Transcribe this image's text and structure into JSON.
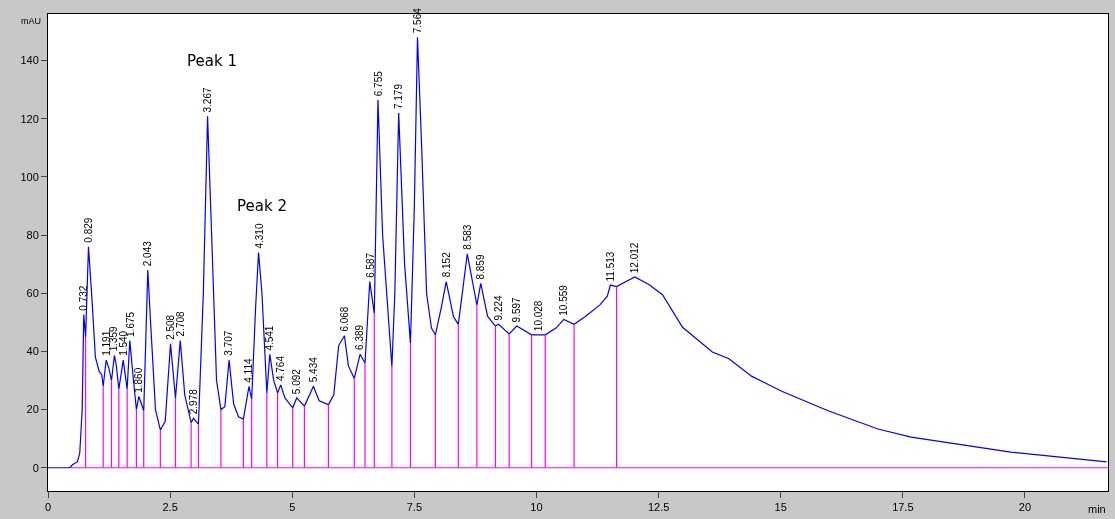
{
  "chart_data": {
    "type": "line",
    "xlabel": "min",
    "ylabel": "mAU",
    "xlim": [
      0,
      21.7
    ],
    "ylim": [
      -8,
      156
    ],
    "xticks": [
      0,
      2.5,
      5,
      7.5,
      10,
      12.5,
      15,
      17.5,
      20
    ],
    "yticks": [
      0,
      20,
      40,
      60,
      80,
      100,
      120,
      140
    ],
    "marker": "none",
    "line_style": "solid",
    "series": [
      {
        "color": "#0000ff",
        "x": [
          0,
          0.45,
          0.5,
          0.6,
          0.65,
          0.7,
          0.732,
          0.77,
          0.829,
          0.9,
          0.97,
          1.05,
          1.1,
          1.13,
          1.191,
          1.25,
          1.3,
          1.359,
          1.4,
          1.45,
          1.54,
          1.62,
          1.675,
          1.75,
          1.81,
          1.86,
          1.96,
          2.043,
          2.1,
          2.2,
          2.3,
          2.4,
          2.508,
          2.61,
          2.708,
          2.8,
          2.93,
          2.978,
          3.08,
          3.18,
          3.267,
          3.35,
          3.45,
          3.54,
          3.62,
          3.707,
          3.8,
          3.9,
          4.0,
          4.114,
          4.17,
          4.25,
          4.31,
          4.38,
          4.48,
          4.541,
          4.62,
          4.7,
          4.764,
          4.85,
          5.01,
          5.092,
          5.25,
          5.434,
          5.55,
          5.74,
          5.85,
          5.95,
          6.068,
          6.15,
          6.27,
          6.389,
          6.49,
          6.587,
          6.68,
          6.755,
          6.85,
          7.04,
          7.1,
          7.179,
          7.3,
          7.42,
          7.5,
          7.564,
          7.65,
          7.75,
          7.85,
          7.93,
          8.05,
          8.152,
          8.3,
          8.4,
          8.583,
          8.78,
          8.859,
          9.0,
          9.16,
          9.224,
          9.44,
          9.597,
          9.9,
          10.028,
          10.18,
          10.4,
          10.559,
          10.77,
          11.0,
          11.3,
          11.45,
          11.513,
          11.64,
          12.012,
          12.3,
          12.58,
          12.99,
          13.6,
          13.94,
          14.41,
          15.02,
          15.97,
          16.99,
          17.67,
          19.71,
          21.67
        ],
        "values": [
          0,
          0,
          1,
          2,
          5,
          20,
          52.7,
          45,
          76,
          58,
          38,
          33,
          32,
          28,
          37,
          34,
          30,
          38.6,
          35,
          27,
          37,
          27,
          43.7,
          30,
          20,
          24.5,
          19.6,
          68,
          50,
          20,
          13,
          16,
          42.6,
          24,
          43.7,
          25,
          15.5,
          17,
          15,
          60,
          120.8,
          80,
          30,
          20,
          21,
          37,
          22,
          17.5,
          16.7,
          28,
          23.6,
          55,
          74,
          60,
          25.7,
          39,
          30,
          25.7,
          28.5,
          24,
          20.6,
          24,
          21.2,
          28,
          23,
          21.7,
          25,
          42,
          45.4,
          35,
          30.7,
          39,
          36,
          64,
          53,
          126.5,
          80,
          34.7,
          60,
          122,
          70,
          42.8,
          90,
          148,
          110,
          60,
          48,
          45.7,
          55,
          64,
          52,
          49.3,
          73.5,
          56,
          63.4,
          52,
          48.7,
          49.3,
          46,
          48.7,
          45.7,
          45.7,
          45.7,
          48,
          51,
          49.3,
          52,
          56,
          59,
          62.8,
          62.3,
          65.6,
          63,
          59.5,
          48.3,
          39.8,
          37.5,
          31.4,
          26.3,
          19.6,
          13.3,
          10.5,
          5.4,
          2
        ]
      },
      {
        "color": "#ff00ff",
        "x": [
          0.47,
          21.7,
          null,
          0.77,
          0.77,
          null,
          1.13,
          1.13,
          null,
          1.3,
          1.3,
          null,
          1.45,
          1.45,
          null,
          1.62,
          1.62,
          null,
          1.81,
          1.81,
          null,
          1.96,
          1.96,
          null,
          2.3,
          2.3,
          null,
          2.61,
          2.61,
          null,
          2.93,
          2.93,
          null,
          3.08,
          3.08,
          null,
          3.54,
          3.54,
          null,
          4.0,
          4.0,
          null,
          4.17,
          4.17,
          null,
          4.48,
          4.48,
          null,
          4.7,
          4.7,
          null,
          5.01,
          5.01,
          null,
          5.25,
          5.25,
          null,
          5.74,
          5.74,
          null,
          6.27,
          6.27,
          null,
          6.49,
          6.49,
          null,
          6.68,
          6.68,
          null,
          7.04,
          7.04,
          null,
          7.42,
          7.42,
          null,
          7.93,
          7.93,
          null,
          8.4,
          8.4,
          null,
          8.78,
          8.78,
          null,
          9.16,
          9.16,
          null,
          9.44,
          9.44,
          null,
          9.9,
          9.9,
          null,
          10.18,
          10.18,
          null,
          10.77,
          10.77,
          null,
          11.64,
          11.64
        ],
        "values": [
          0,
          0,
          null,
          0,
          45,
          null,
          0,
          28,
          null,
          0,
          30,
          null,
          0,
          27,
          null,
          0,
          27,
          null,
          0,
          20,
          null,
          0,
          19.6,
          null,
          0,
          13,
          null,
          0,
          24,
          null,
          0,
          15.5,
          null,
          0,
          15,
          null,
          0,
          20,
          null,
          0,
          16.7,
          null,
          0,
          23.6,
          null,
          0,
          25.7,
          null,
          0,
          25.7,
          null,
          0,
          20.6,
          null,
          0,
          21.2,
          null,
          0,
          21.7,
          null,
          0,
          30.7,
          null,
          0,
          36,
          null,
          0,
          53,
          null,
          0,
          34.7,
          null,
          0,
          42.8,
          null,
          0,
          45.7,
          null,
          0,
          49.3,
          null,
          0,
          56,
          null,
          0,
          48.7,
          null,
          0,
          46,
          null,
          0,
          45.7,
          null,
          0,
          45.7,
          null,
          0,
          49.3,
          null,
          0,
          62.3
        ]
      }
    ],
    "annotations": [
      {
        "text": "0.732",
        "x": 0.732,
        "y": 52.7
      },
      {
        "text": "0.829",
        "x": 0.829,
        "y": 76
      },
      {
        "text": "1.191",
        "x": 1.191,
        "y": 37
      },
      {
        "text": "1.359",
        "x": 1.359,
        "y": 38.6
      },
      {
        "text": "1.540",
        "x": 1.54,
        "y": 37
      },
      {
        "text": "1.675",
        "x": 1.675,
        "y": 43.7
      },
      {
        "text": "1.860",
        "x": 1.86,
        "y": 24.5
      },
      {
        "text": "2.043",
        "x": 2.043,
        "y": 68
      },
      {
        "text": "2.508",
        "x": 2.508,
        "y": 42.6
      },
      {
        "text": "2.708",
        "x": 2.708,
        "y": 43.7
      },
      {
        "text": "2.978",
        "x": 2.978,
        "y": 17
      },
      {
        "text": "3.267",
        "x": 3.267,
        "y": 120.8
      },
      {
        "text": "3.707",
        "x": 3.707,
        "y": 37
      },
      {
        "text": "4.114",
        "x": 4.114,
        "y": 28
      },
      {
        "text": "4.310",
        "x": 4.31,
        "y": 74
      },
      {
        "text": "4.541",
        "x": 4.541,
        "y": 39
      },
      {
        "text": "4.764",
        "x": 4.764,
        "y": 28.5
      },
      {
        "text": "5.092",
        "x": 5.092,
        "y": 24
      },
      {
        "text": "5.434",
        "x": 5.434,
        "y": 28
      },
      {
        "text": "6.068",
        "x": 6.068,
        "y": 45.4
      },
      {
        "text": "6.389",
        "x": 6.389,
        "y": 39
      },
      {
        "text": "6.587",
        "x": 6.587,
        "y": 64
      },
      {
        "text": "6.755",
        "x": 6.755,
        "y": 126.5
      },
      {
        "text": "7.179",
        "x": 7.179,
        "y": 122
      },
      {
        "text": "7.564",
        "x": 7.564,
        "y": 148
      },
      {
        "text": "8.152",
        "x": 8.152,
        "y": 64
      },
      {
        "text": "8.583",
        "x": 8.583,
        "y": 73.5
      },
      {
        "text": "8.859",
        "x": 8.859,
        "y": 63.4
      },
      {
        "text": "9.224",
        "x": 9.224,
        "y": 49.3
      },
      {
        "text": "9.597",
        "x": 9.597,
        "y": 48.7
      },
      {
        "text": "10.028",
        "x": 10.028,
        "y": 45.7
      },
      {
        "text": "10.559",
        "x": 10.559,
        "y": 51
      },
      {
        "text": "11.513",
        "x": 11.513,
        "y": 62.8
      },
      {
        "text": "12.012",
        "x": 12.012,
        "y": 65.6
      },
      "Peak 1",
      "Peak 2"
    ]
  }
}
